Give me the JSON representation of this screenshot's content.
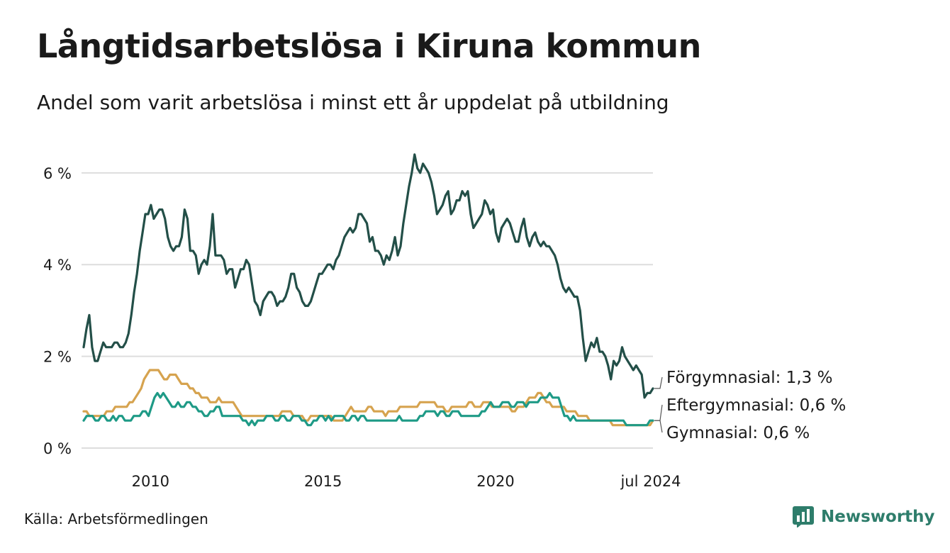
{
  "title": "Långtidsarbetslösa i Kiruna kommun",
  "subtitle": "Andel som varit arbetslösa i minst ett år uppdelat på utbildning",
  "source": "Källa: Arbetsförmedlingen",
  "brand": "Newsworthy",
  "colors": {
    "brand": "#2e7d6b",
    "grid": "#dddddd"
  },
  "chart_data": {
    "type": "line",
    "title": "Långtidsarbetslösa i Kiruna kommun",
    "xlabel": "",
    "ylabel": "",
    "x_start": 2008.0,
    "x_end": 2024.5,
    "xlim": [
      2008.0,
      2024.5
    ],
    "ylim": [
      0,
      6.6
    ],
    "y_ticks": [
      0,
      2,
      4,
      6
    ],
    "y_tick_labels": [
      "0 %",
      "2 %",
      "4 %",
      "6 %"
    ],
    "x_ticks": [
      2010,
      2015,
      2020,
      2024.5
    ],
    "x_tick_labels": [
      "2010",
      "2015",
      "2020",
      "jul 2024"
    ],
    "grid": true,
    "series": [
      {
        "name": "Förgymnasial",
        "label": "Förgymnasial: 1,3 %",
        "color": "#234f48",
        "values": [
          2.2,
          2.6,
          2.9,
          2.2,
          1.9,
          1.9,
          2.1,
          2.3,
          2.2,
          2.2,
          2.2,
          2.3,
          2.3,
          2.2,
          2.2,
          2.3,
          2.5,
          2.9,
          3.4,
          3.8,
          4.3,
          4.7,
          5.1,
          5.1,
          5.3,
          5.0,
          5.1,
          5.2,
          5.2,
          5.0,
          4.6,
          4.4,
          4.3,
          4.4,
          4.4,
          4.6,
          5.2,
          5.0,
          4.3,
          4.3,
          4.2,
          3.8,
          4.0,
          4.1,
          4.0,
          4.4,
          5.1,
          4.2,
          4.2,
          4.2,
          4.1,
          3.8,
          3.9,
          3.9,
          3.5,
          3.7,
          3.9,
          3.9,
          4.1,
          4.0,
          3.6,
          3.2,
          3.1,
          2.9,
          3.2,
          3.3,
          3.4,
          3.4,
          3.3,
          3.1,
          3.2,
          3.2,
          3.3,
          3.5,
          3.8,
          3.8,
          3.5,
          3.4,
          3.2,
          3.1,
          3.1,
          3.2,
          3.4,
          3.6,
          3.8,
          3.8,
          3.9,
          4.0,
          4.0,
          3.9,
          4.1,
          4.2,
          4.4,
          4.6,
          4.7,
          4.8,
          4.7,
          4.8,
          5.1,
          5.1,
          5.0,
          4.9,
          4.5,
          4.6,
          4.3,
          4.3,
          4.2,
          4.0,
          4.2,
          4.1,
          4.3,
          4.6,
          4.2,
          4.4,
          4.9,
          5.3,
          5.7,
          6.0,
          6.4,
          6.1,
          6.0,
          6.2,
          6.1,
          6.0,
          5.8,
          5.5,
          5.1,
          5.2,
          5.3,
          5.5,
          5.6,
          5.1,
          5.2,
          5.4,
          5.4,
          5.6,
          5.5,
          5.6,
          5.1,
          4.8,
          4.9,
          5.0,
          5.1,
          5.4,
          5.3,
          5.1,
          5.2,
          4.7,
          4.5,
          4.8,
          4.9,
          5.0,
          4.9,
          4.7,
          4.5,
          4.5,
          4.8,
          5.0,
          4.6,
          4.4,
          4.6,
          4.7,
          4.5,
          4.4,
          4.5,
          4.4,
          4.4,
          4.3,
          4.2,
          4.0,
          3.7,
          3.5,
          3.4,
          3.5,
          3.4,
          3.3,
          3.3,
          3.0,
          2.4,
          1.9,
          2.1,
          2.3,
          2.2,
          2.4,
          2.1,
          2.1,
          2.0,
          1.8,
          1.5,
          1.9,
          1.8,
          1.9,
          2.2,
          2.0,
          1.9,
          1.8,
          1.7,
          1.8,
          1.7,
          1.6,
          1.1,
          1.2,
          1.2,
          1.3
        ]
      },
      {
        "name": "Eftergymnasial",
        "label": "Eftergymnasial: 0,6 %",
        "color": "#d6a34f",
        "values": [
          0.8,
          0.8,
          0.7,
          0.7,
          0.7,
          0.7,
          0.7,
          0.7,
          0.8,
          0.8,
          0.8,
          0.9,
          0.9,
          0.9,
          0.9,
          0.9,
          1.0,
          1.0,
          1.1,
          1.2,
          1.3,
          1.5,
          1.6,
          1.7,
          1.7,
          1.7,
          1.7,
          1.6,
          1.5,
          1.5,
          1.6,
          1.6,
          1.6,
          1.5,
          1.4,
          1.4,
          1.4,
          1.3,
          1.3,
          1.2,
          1.2,
          1.1,
          1.1,
          1.1,
          1.0,
          1.0,
          1.0,
          1.1,
          1.0,
          1.0,
          1.0,
          1.0,
          1.0,
          0.9,
          0.8,
          0.7,
          0.7,
          0.7,
          0.7,
          0.7,
          0.7,
          0.7,
          0.7,
          0.7,
          0.7,
          0.7,
          0.7,
          0.7,
          0.7,
          0.8,
          0.8,
          0.8,
          0.8,
          0.7,
          0.7,
          0.7,
          0.7,
          0.6,
          0.6,
          0.7,
          0.7,
          0.7,
          0.7,
          0.7,
          0.7,
          0.7,
          0.7,
          0.6,
          0.6,
          0.6,
          0.6,
          0.7,
          0.8,
          0.9,
          0.8,
          0.8,
          0.8,
          0.8,
          0.8,
          0.9,
          0.9,
          0.8,
          0.8,
          0.8,
          0.8,
          0.7,
          0.8,
          0.8,
          0.8,
          0.8,
          0.9,
          0.9,
          0.9,
          0.9,
          0.9,
          0.9,
          0.9,
          1.0,
          1.0,
          1.0,
          1.0,
          1.0,
          1.0,
          0.9,
          0.9,
          0.9,
          0.8,
          0.8,
          0.9,
          0.9,
          0.9,
          0.9,
          0.9,
          0.9,
          1.0,
          1.0,
          0.9,
          0.9,
          0.9,
          1.0,
          1.0,
          1.0,
          0.9,
          0.9,
          0.9,
          0.9,
          0.9,
          0.9,
          0.9,
          0.8,
          0.8,
          0.9,
          0.9,
          0.9,
          1.0,
          1.1,
          1.1,
          1.1,
          1.2,
          1.2,
          1.1,
          1.0,
          1.0,
          0.9,
          0.9,
          0.9,
          0.9,
          0.9,
          0.8,
          0.8,
          0.8,
          0.8,
          0.7,
          0.7,
          0.7,
          0.7,
          0.6,
          0.6,
          0.6,
          0.6,
          0.6,
          0.6,
          0.6,
          0.6,
          0.5,
          0.5,
          0.5,
          0.5,
          0.5,
          0.5,
          0.5,
          0.5,
          0.5,
          0.5,
          0.5,
          0.5,
          0.5,
          0.5,
          0.6
        ]
      },
      {
        "name": "Gymnasial",
        "label": "Gymnasial: 0,6 %",
        "color": "#1e9a86",
        "values": [
          0.6,
          0.7,
          0.7,
          0.7,
          0.6,
          0.6,
          0.7,
          0.7,
          0.6,
          0.6,
          0.7,
          0.6,
          0.7,
          0.7,
          0.6,
          0.6,
          0.6,
          0.7,
          0.7,
          0.7,
          0.8,
          0.8,
          0.7,
          0.9,
          1.1,
          1.2,
          1.1,
          1.2,
          1.1,
          1.0,
          0.9,
          0.9,
          1.0,
          0.9,
          0.9,
          1.0,
          1.0,
          0.9,
          0.9,
          0.8,
          0.8,
          0.7,
          0.7,
          0.8,
          0.8,
          0.9,
          0.9,
          0.7,
          0.7,
          0.7,
          0.7,
          0.7,
          0.7,
          0.7,
          0.6,
          0.6,
          0.5,
          0.6,
          0.5,
          0.6,
          0.6,
          0.6,
          0.7,
          0.7,
          0.7,
          0.6,
          0.6,
          0.7,
          0.7,
          0.6,
          0.6,
          0.7,
          0.7,
          0.7,
          0.6,
          0.6,
          0.5,
          0.5,
          0.6,
          0.6,
          0.7,
          0.7,
          0.6,
          0.7,
          0.6,
          0.7,
          0.7,
          0.7,
          0.7,
          0.6,
          0.6,
          0.7,
          0.7,
          0.6,
          0.7,
          0.7,
          0.6,
          0.6,
          0.6,
          0.6,
          0.6,
          0.6,
          0.6,
          0.6,
          0.6,
          0.6,
          0.6,
          0.7,
          0.6,
          0.6,
          0.6,
          0.6,
          0.6,
          0.6,
          0.7,
          0.7,
          0.8,
          0.8,
          0.8,
          0.8,
          0.7,
          0.8,
          0.8,
          0.7,
          0.7,
          0.8,
          0.8,
          0.8,
          0.7,
          0.7,
          0.7,
          0.7,
          0.7,
          0.7,
          0.7,
          0.8,
          0.8,
          0.9,
          1.0,
          0.9,
          0.9,
          0.9,
          1.0,
          1.0,
          1.0,
          0.9,
          0.9,
          1.0,
          1.0,
          1.0,
          0.9,
          1.0,
          1.0,
          1.0,
          1.0,
          1.1,
          1.1,
          1.1,
          1.2,
          1.1,
          1.1,
          1.1,
          0.9,
          0.7,
          0.7,
          0.6,
          0.7,
          0.6,
          0.6,
          0.6,
          0.6,
          0.6,
          0.6,
          0.6,
          0.6,
          0.6,
          0.6,
          0.6,
          0.6,
          0.6,
          0.6,
          0.6,
          0.6,
          0.6,
          0.5,
          0.5,
          0.5,
          0.5,
          0.5,
          0.5,
          0.5,
          0.5,
          0.6,
          0.6
        ]
      }
    ]
  }
}
